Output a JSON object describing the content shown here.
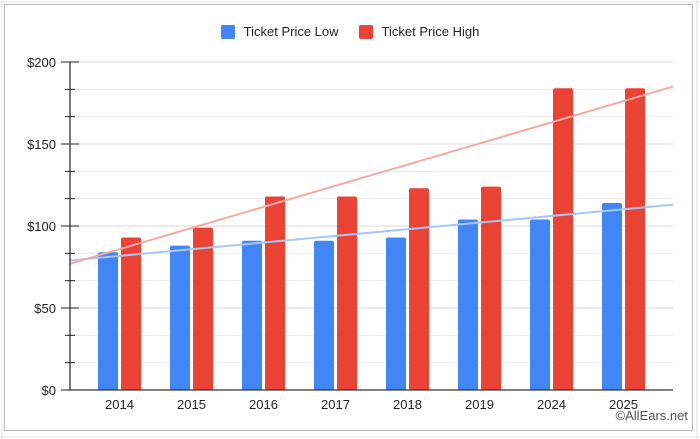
{
  "chart_data": {
    "type": "bar",
    "title": "",
    "xlabel": "",
    "ylabel": "",
    "categories": [
      "2014",
      "2015",
      "2016",
      "2017",
      "2018",
      "2019",
      "2024",
      "2025"
    ],
    "series": [
      {
        "name": "Ticket Price Low",
        "color": "#4285f4",
        "values": [
          84,
          88,
          91,
          91,
          93,
          104,
          104,
          114
        ]
      },
      {
        "name": "Ticket Price High",
        "color": "#ea4335",
        "values": [
          93,
          99,
          118,
          118,
          123,
          124,
          184,
          184
        ]
      }
    ],
    "trendlines": [
      {
        "series": "Ticket Price Low",
        "color": "#a8c7f5",
        "start": 79,
        "end": 113
      },
      {
        "series": "Ticket Price High",
        "color": "#f3aba4",
        "start": 77,
        "end": 185
      }
    ],
    "ylim": [
      0,
      200
    ],
    "yticks": [
      0,
      50,
      100,
      150,
      200
    ],
    "ytick_labels": [
      "$0",
      "$50",
      "$100",
      "$150",
      "$200"
    ],
    "minor_gridlines": true,
    "grid": true,
    "legend_position": "top-center"
  },
  "legend": {
    "items": [
      {
        "label": "Ticket Price Low",
        "color": "#4285f4"
      },
      {
        "label": "Ticket Price High",
        "color": "#ea4335"
      }
    ]
  },
  "watermark": "©AllEars.net"
}
